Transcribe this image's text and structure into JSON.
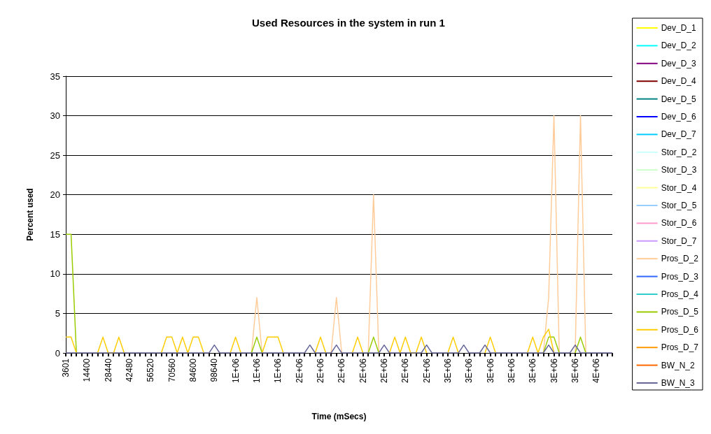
{
  "chart_data": {
    "type": "line",
    "title": "Used Resources in the system in run 1",
    "xlabel": "Time (mSecs)",
    "ylabel": "Percent used",
    "categories": [
      "3601",
      null,
      null,
      null,
      "14400",
      null,
      null,
      null,
      "28440",
      null,
      null,
      null,
      "42480",
      null,
      null,
      null,
      "56520",
      null,
      null,
      null,
      "70560",
      null,
      null,
      null,
      "84600",
      null,
      null,
      null,
      "98640",
      null,
      null,
      null,
      "1E+06",
      null,
      null,
      null,
      "1E+06",
      null,
      null,
      null,
      "1E+06",
      null,
      null,
      null,
      "2E+06",
      null,
      null,
      null,
      "2E+06",
      null,
      null,
      null,
      "2E+06",
      null,
      null,
      null,
      "2E+06",
      null,
      null,
      null,
      "2E+06",
      null,
      null,
      null,
      "2E+06",
      null,
      null,
      null,
      "2E+06",
      null,
      null,
      null,
      "3E+06",
      null,
      null,
      null,
      "3E+06",
      null,
      null,
      null,
      "3E+06",
      null,
      null,
      null,
      "3E+06",
      null,
      null,
      null,
      "3E+06",
      null,
      null,
      null,
      "3E+06",
      null,
      null,
      null,
      "3E+06",
      null,
      null,
      null,
      "4E+06",
      null,
      null,
      null
    ],
    "ylim": [
      0,
      35
    ],
    "yticks": [
      0,
      5,
      10,
      15,
      20,
      25,
      30,
      35
    ],
    "grid": "y",
    "legend": "right",
    "marker": "none",
    "series": [
      {
        "name": "Dev_D_1",
        "color": "#ffff00",
        "values": [
          null,
          null,
          null,
          null,
          null,
          null,
          null,
          null,
          null,
          null,
          null,
          null,
          null,
          null,
          null,
          null,
          null,
          null,
          null,
          null,
          null,
          null,
          null,
          null,
          null,
          null,
          null,
          null,
          null,
          null,
          null,
          null,
          null,
          null,
          null,
          null,
          null,
          null,
          null,
          null,
          null,
          null,
          null,
          null,
          null,
          null,
          null,
          null,
          null,
          null,
          null,
          null,
          null,
          null,
          null,
          null,
          null,
          null,
          null,
          null,
          null,
          null,
          null,
          null,
          null,
          null,
          null,
          null,
          null,
          null,
          null,
          null,
          null,
          null,
          null,
          null,
          null,
          null,
          null,
          null,
          null,
          null,
          null,
          null,
          null,
          null,
          null,
          null,
          null,
          null,
          null,
          null,
          null,
          null,
          null,
          null,
          null,
          null,
          null,
          null,
          null,
          null,
          null,
          null
        ]
      },
      {
        "name": "Dev_D_2",
        "color": "#00ffff",
        "values": [
          null,
          null,
          null,
          null,
          null,
          null,
          null,
          null,
          null,
          null,
          null,
          null,
          null,
          null,
          null,
          null,
          null,
          null,
          null,
          null,
          null,
          null,
          null,
          null,
          null,
          null,
          null,
          null,
          null,
          null,
          null,
          null,
          null,
          null,
          null,
          null,
          null,
          null,
          null,
          null,
          null,
          null,
          null,
          null,
          null,
          null,
          null,
          null,
          null,
          null,
          null,
          null,
          null,
          null,
          null,
          null,
          null,
          null,
          null,
          null,
          null,
          null,
          null,
          null,
          null,
          null,
          null,
          null,
          null,
          null,
          null,
          null,
          null,
          null,
          null,
          null,
          null,
          null,
          null,
          null,
          null,
          null,
          null,
          null,
          null,
          null,
          null,
          null,
          null,
          null,
          null,
          null,
          null,
          null,
          null,
          null,
          null,
          null,
          null,
          null,
          null,
          null,
          null,
          null
        ]
      },
      {
        "name": "Dev_D_3",
        "color": "#800080",
        "values": [
          null,
          null,
          null,
          null,
          null,
          null,
          null,
          null,
          null,
          null,
          null,
          null,
          null,
          null,
          null,
          null,
          null,
          null,
          null,
          null,
          null,
          null,
          null,
          null,
          null,
          null,
          null,
          null,
          null,
          null,
          null,
          null,
          null,
          null,
          null,
          null,
          null,
          null,
          null,
          null,
          null,
          null,
          null,
          null,
          null,
          null,
          null,
          null,
          null,
          null,
          null,
          null,
          null,
          null,
          null,
          null,
          null,
          null,
          null,
          null,
          null,
          null,
          null,
          null,
          null,
          null,
          null,
          null,
          null,
          null,
          null,
          null,
          null,
          null,
          null,
          null,
          null,
          null,
          null,
          null,
          null,
          null,
          null,
          null,
          null,
          null,
          null,
          null,
          null,
          null,
          null,
          null,
          null,
          null,
          null,
          null,
          null,
          null,
          null,
          null,
          null,
          null,
          null,
          null
        ]
      },
      {
        "name": "Dev_D_4",
        "color": "#800000",
        "values": [
          null,
          null,
          null,
          null,
          null,
          null,
          null,
          null,
          null,
          null,
          null,
          null,
          null,
          null,
          null,
          null,
          null,
          null,
          null,
          null,
          null,
          null,
          null,
          null,
          null,
          null,
          null,
          null,
          null,
          null,
          null,
          null,
          null,
          null,
          null,
          null,
          null,
          null,
          null,
          null,
          null,
          null,
          null,
          null,
          null,
          null,
          null,
          null,
          null,
          null,
          null,
          null,
          null,
          null,
          null,
          null,
          null,
          null,
          null,
          null,
          null,
          null,
          null,
          null,
          null,
          null,
          null,
          null,
          null,
          null,
          null,
          null,
          null,
          null,
          null,
          null,
          null,
          null,
          null,
          null,
          null,
          null,
          null,
          null,
          null,
          null,
          null,
          null,
          null,
          null,
          null,
          null,
          null,
          null,
          null,
          null,
          null,
          null,
          null,
          null,
          null,
          null,
          null,
          null
        ]
      },
      {
        "name": "Dev_D_5",
        "color": "#008080",
        "values": [
          null,
          null,
          null,
          null,
          null,
          null,
          null,
          null,
          null,
          null,
          null,
          null,
          null,
          null,
          null,
          null,
          null,
          null,
          null,
          null,
          null,
          null,
          null,
          null,
          null,
          null,
          null,
          null,
          null,
          null,
          null,
          null,
          null,
          null,
          null,
          null,
          null,
          null,
          null,
          null,
          null,
          null,
          null,
          null,
          null,
          null,
          null,
          null,
          null,
          null,
          null,
          null,
          null,
          null,
          null,
          null,
          null,
          null,
          null,
          null,
          null,
          null,
          null,
          null,
          null,
          null,
          null,
          null,
          null,
          null,
          null,
          null,
          null,
          null,
          null,
          null,
          null,
          null,
          null,
          null,
          null,
          null,
          null,
          null,
          null,
          null,
          null,
          null,
          null,
          null,
          null,
          null,
          null,
          null,
          null,
          null,
          null,
          null,
          null,
          null,
          null,
          null,
          null,
          null
        ]
      },
      {
        "name": "Dev_D_6",
        "color": "#0000ff",
        "values": [
          null,
          null,
          null,
          null,
          null,
          null,
          null,
          null,
          null,
          null,
          null,
          null,
          null,
          null,
          null,
          null,
          null,
          null,
          null,
          null,
          null,
          null,
          null,
          null,
          null,
          null,
          null,
          null,
          null,
          null,
          null,
          null,
          null,
          null,
          null,
          null,
          null,
          null,
          null,
          null,
          null,
          null,
          null,
          null,
          null,
          null,
          null,
          null,
          null,
          null,
          null,
          null,
          null,
          null,
          null,
          null,
          null,
          null,
          null,
          null,
          null,
          null,
          null,
          null,
          null,
          null,
          null,
          null,
          null,
          null,
          null,
          null,
          null,
          null,
          null,
          null,
          null,
          null,
          null,
          null,
          null,
          null,
          null,
          null,
          null,
          null,
          null,
          null,
          null,
          null,
          null,
          null,
          null,
          null,
          null,
          null,
          null,
          null,
          null,
          null,
          null,
          null,
          null,
          null
        ]
      },
      {
        "name": "Dev_D_7",
        "color": "#00ccff",
        "values": [
          null,
          null,
          null,
          null,
          null,
          null,
          null,
          null,
          null,
          null,
          null,
          null,
          null,
          null,
          null,
          null,
          null,
          null,
          null,
          null,
          null,
          null,
          null,
          null,
          null,
          null,
          null,
          null,
          null,
          null,
          null,
          null,
          null,
          null,
          null,
          null,
          null,
          null,
          null,
          null,
          null,
          null,
          null,
          null,
          null,
          null,
          null,
          null,
          null,
          null,
          null,
          null,
          null,
          null,
          null,
          null,
          null,
          null,
          null,
          null,
          null,
          null,
          null,
          null,
          null,
          null,
          null,
          null,
          null,
          null,
          null,
          null,
          null,
          null,
          null,
          null,
          null,
          null,
          null,
          null,
          null,
          null,
          null,
          null,
          null,
          null,
          null,
          null,
          null,
          null,
          null,
          null,
          null,
          null,
          null,
          null,
          null,
          null,
          null,
          null,
          null,
          null,
          null,
          null
        ]
      },
      {
        "name": "Stor_D_2",
        "color": "#ccffff",
        "values": [
          null,
          null,
          null,
          null,
          null,
          null,
          null,
          null,
          null,
          null,
          null,
          null,
          null,
          null,
          null,
          null,
          null,
          null,
          null,
          null,
          null,
          null,
          null,
          null,
          null,
          null,
          null,
          null,
          null,
          null,
          null,
          null,
          null,
          null,
          null,
          null,
          null,
          null,
          null,
          null,
          null,
          null,
          null,
          null,
          null,
          null,
          null,
          null,
          null,
          null,
          null,
          null,
          null,
          null,
          null,
          null,
          null,
          null,
          null,
          null,
          null,
          null,
          null,
          null,
          null,
          null,
          null,
          null,
          null,
          null,
          null,
          null,
          null,
          null,
          null,
          null,
          null,
          null,
          null,
          null,
          null,
          null,
          null,
          null,
          null,
          null,
          null,
          null,
          null,
          null,
          null,
          null,
          null,
          null,
          null,
          null,
          null,
          null,
          null,
          null,
          null,
          null,
          null,
          null
        ]
      },
      {
        "name": "Stor_D_3",
        "color": "#ccffcc",
        "values": [
          null,
          null,
          null,
          null,
          null,
          null,
          null,
          null,
          null,
          null,
          null,
          null,
          null,
          null,
          null,
          null,
          null,
          null,
          null,
          null,
          null,
          null,
          null,
          null,
          null,
          null,
          null,
          null,
          null,
          null,
          null,
          null,
          null,
          null,
          null,
          null,
          null,
          null,
          null,
          null,
          null,
          null,
          null,
          null,
          null,
          null,
          null,
          null,
          null,
          null,
          null,
          null,
          null,
          null,
          null,
          null,
          null,
          null,
          null,
          null,
          null,
          null,
          null,
          null,
          null,
          null,
          null,
          null,
          null,
          null,
          null,
          null,
          null,
          null,
          null,
          null,
          null,
          null,
          null,
          null,
          null,
          null,
          null,
          null,
          null,
          null,
          null,
          null,
          null,
          null,
          null,
          null,
          null,
          null,
          null,
          null,
          null,
          null,
          null,
          null,
          null,
          null,
          null,
          null
        ]
      },
      {
        "name": "Stor_D_4",
        "color": "#ffff99",
        "values": [
          null,
          null,
          null,
          null,
          null,
          null,
          null,
          null,
          null,
          null,
          null,
          null,
          null,
          null,
          null,
          null,
          null,
          null,
          null,
          null,
          null,
          null,
          null,
          null,
          null,
          null,
          null,
          null,
          null,
          null,
          null,
          null,
          null,
          null,
          null,
          null,
          null,
          null,
          null,
          null,
          null,
          null,
          null,
          null,
          null,
          null,
          null,
          null,
          null,
          null,
          null,
          null,
          null,
          null,
          null,
          null,
          null,
          null,
          null,
          null,
          null,
          null,
          null,
          null,
          null,
          null,
          null,
          null,
          null,
          null,
          null,
          null,
          null,
          null,
          null,
          null,
          null,
          null,
          null,
          null,
          null,
          null,
          null,
          null,
          null,
          null,
          null,
          null,
          null,
          null,
          null,
          null,
          null,
          null,
          null,
          null,
          null,
          null,
          null,
          null,
          null,
          null,
          null,
          null
        ]
      },
      {
        "name": "Stor_D_5",
        "color": "#99ccff",
        "values": [
          null,
          null,
          null,
          null,
          null,
          null,
          null,
          null,
          null,
          null,
          null,
          null,
          null,
          null,
          null,
          null,
          null,
          null,
          null,
          null,
          null,
          null,
          null,
          null,
          null,
          null,
          null,
          null,
          null,
          null,
          null,
          null,
          null,
          null,
          null,
          null,
          null,
          null,
          null,
          null,
          null,
          null,
          null,
          null,
          null,
          null,
          null,
          null,
          null,
          null,
          null,
          null,
          null,
          null,
          null,
          null,
          null,
          null,
          null,
          null,
          null,
          null,
          null,
          null,
          null,
          null,
          null,
          null,
          null,
          null,
          null,
          null,
          null,
          null,
          null,
          null,
          null,
          null,
          null,
          null,
          null,
          null,
          null,
          null,
          null,
          null,
          null,
          null,
          null,
          null,
          null,
          null,
          null,
          null,
          null,
          null,
          null,
          null,
          null,
          null,
          null,
          null,
          null,
          null
        ]
      },
      {
        "name": "Stor_D_6",
        "color": "#ff99cc",
        "values": [
          null,
          null,
          null,
          null,
          null,
          null,
          null,
          null,
          null,
          null,
          null,
          null,
          null,
          null,
          null,
          null,
          null,
          null,
          null,
          null,
          null,
          null,
          null,
          null,
          null,
          null,
          null,
          null,
          null,
          null,
          null,
          null,
          null,
          null,
          null,
          null,
          null,
          null,
          null,
          null,
          null,
          null,
          null,
          null,
          null,
          null,
          null,
          null,
          null,
          null,
          null,
          null,
          null,
          null,
          null,
          null,
          null,
          null,
          null,
          null,
          null,
          null,
          null,
          null,
          null,
          null,
          null,
          null,
          null,
          null,
          null,
          null,
          null,
          null,
          null,
          null,
          null,
          null,
          null,
          null,
          null,
          null,
          null,
          null,
          null,
          null,
          null,
          null,
          null,
          null,
          null,
          null,
          null,
          null,
          null,
          null,
          null,
          null,
          null,
          null,
          null,
          null,
          null,
          null
        ]
      },
      {
        "name": "Stor_D_7",
        "color": "#cc99ff",
        "values": [
          null,
          null,
          null,
          null,
          null,
          null,
          null,
          null,
          null,
          null,
          null,
          null,
          null,
          null,
          null,
          null,
          null,
          null,
          null,
          null,
          null,
          null,
          null,
          null,
          null,
          null,
          null,
          null,
          null,
          null,
          null,
          null,
          null,
          null,
          null,
          null,
          null,
          null,
          null,
          null,
          null,
          null,
          null,
          null,
          null,
          null,
          null,
          null,
          null,
          null,
          null,
          null,
          null,
          null,
          null,
          null,
          null,
          null,
          null,
          null,
          null,
          null,
          null,
          null,
          null,
          null,
          null,
          null,
          null,
          null,
          null,
          null,
          null,
          null,
          null,
          null,
          null,
          null,
          null,
          null,
          null,
          null,
          null,
          null,
          null,
          null,
          null,
          null,
          null,
          null,
          null,
          null,
          null,
          null,
          null,
          null,
          null,
          null,
          null,
          null,
          null,
          null,
          null,
          null
        ]
      },
      {
        "name": "Pros_D_2",
        "color": "#ffcc99",
        "values": [
          null,
          null,
          null,
          null,
          null,
          null,
          null,
          null,
          null,
          null,
          null,
          null,
          null,
          null,
          null,
          null,
          null,
          null,
          null,
          null,
          null,
          null,
          null,
          null,
          null,
          null,
          null,
          null,
          null,
          null,
          null,
          null,
          null,
          null,
          null,
          0,
          7,
          0,
          null,
          null,
          null,
          null,
          null,
          null,
          null,
          null,
          null,
          null,
          null,
          null,
          0,
          7,
          0,
          null,
          null,
          null,
          null,
          0,
          20,
          0,
          null,
          null,
          null,
          null,
          null,
          null,
          null,
          null,
          null,
          null,
          null,
          null,
          null,
          null,
          null,
          null,
          null,
          null,
          null,
          null,
          null,
          null,
          null,
          null,
          null,
          null,
          null,
          null,
          null,
          null,
          0,
          7,
          30,
          0,
          null,
          null,
          0,
          30,
          0,
          null,
          null,
          null,
          null,
          null
        ]
      },
      {
        "name": "Pros_D_3",
        "color": "#3366ff",
        "values": [
          null,
          null,
          null,
          null,
          null,
          null,
          null,
          null,
          null,
          null,
          null,
          null,
          null,
          null,
          null,
          null,
          null,
          null,
          null,
          null,
          null,
          null,
          null,
          null,
          null,
          null,
          null,
          null,
          null,
          null,
          null,
          null,
          null,
          null,
          null,
          null,
          null,
          null,
          null,
          null,
          null,
          null,
          null,
          null,
          null,
          null,
          null,
          null,
          null,
          null,
          null,
          null,
          null,
          null,
          null,
          null,
          null,
          null,
          null,
          null,
          null,
          null,
          null,
          null,
          null,
          null,
          null,
          null,
          null,
          null,
          null,
          null,
          null,
          null,
          null,
          null,
          null,
          null,
          null,
          null,
          null,
          null,
          null,
          null,
          null,
          null,
          null,
          null,
          null,
          null,
          null,
          null,
          null,
          null,
          null,
          null,
          null,
          null,
          null,
          null,
          null,
          null,
          null,
          null
        ]
      },
      {
        "name": "Pros_D_4",
        "color": "#33cccc",
        "values": [
          null,
          null,
          null,
          null,
          null,
          null,
          null,
          null,
          null,
          null,
          null,
          null,
          null,
          null,
          null,
          null,
          null,
          null,
          null,
          null,
          null,
          null,
          null,
          null,
          null,
          null,
          null,
          null,
          null,
          null,
          null,
          null,
          null,
          null,
          null,
          null,
          null,
          null,
          null,
          null,
          null,
          null,
          null,
          null,
          null,
          null,
          null,
          null,
          null,
          null,
          null,
          null,
          null,
          null,
          null,
          null,
          null,
          null,
          null,
          null,
          null,
          null,
          null,
          null,
          null,
          null,
          null,
          null,
          null,
          null,
          null,
          null,
          null,
          null,
          null,
          null,
          null,
          null,
          null,
          null,
          null,
          null,
          null,
          null,
          null,
          null,
          null,
          null,
          null,
          null,
          null,
          null,
          null,
          null,
          null,
          null,
          null,
          null,
          null,
          null,
          null,
          null,
          null,
          null
        ]
      },
      {
        "name": "Pros_D_5",
        "color": "#99cc00",
        "values": [
          15,
          15,
          0,
          null,
          null,
          null,
          null,
          null,
          null,
          null,
          null,
          null,
          null,
          null,
          null,
          null,
          null,
          null,
          null,
          null,
          null,
          null,
          null,
          null,
          null,
          null,
          null,
          null,
          null,
          null,
          null,
          null,
          null,
          null,
          null,
          0,
          2,
          0,
          null,
          null,
          null,
          null,
          null,
          null,
          null,
          null,
          null,
          null,
          null,
          null,
          null,
          null,
          null,
          null,
          null,
          null,
          null,
          0,
          2,
          0,
          null,
          null,
          null,
          null,
          null,
          null,
          null,
          null,
          null,
          null,
          null,
          null,
          null,
          null,
          null,
          null,
          null,
          null,
          null,
          null,
          null,
          null,
          null,
          null,
          null,
          null,
          null,
          null,
          null,
          null,
          0,
          2,
          2,
          0,
          null,
          null,
          0,
          2,
          0,
          null,
          null,
          null,
          null,
          null
        ]
      },
      {
        "name": "Pros_D_6",
        "color": "#ffcc00",
        "values": [
          2,
          2,
          0,
          null,
          null,
          null,
          0,
          2,
          0,
          0,
          2,
          0,
          null,
          null,
          null,
          null,
          null,
          null,
          0,
          2,
          2,
          0,
          2,
          0,
          2,
          2,
          0,
          null,
          null,
          null,
          null,
          0,
          2,
          0,
          null,
          null,
          null,
          0,
          2,
          2,
          2,
          0,
          null,
          null,
          null,
          null,
          null,
          0,
          2,
          0,
          null,
          null,
          null,
          null,
          0,
          2,
          0,
          null,
          null,
          null,
          null,
          0,
          2,
          0,
          2,
          0,
          0,
          2,
          0,
          null,
          null,
          null,
          0,
          2,
          0,
          null,
          null,
          null,
          null,
          0,
          2,
          0,
          null,
          null,
          null,
          null,
          null,
          0,
          2,
          0,
          2,
          3,
          0,
          null,
          null,
          null,
          null,
          null,
          null,
          null,
          null,
          null,
          null,
          null
        ]
      },
      {
        "name": "Pros_D_7",
        "color": "#ff9900",
        "values": [
          null,
          null,
          null,
          null,
          null,
          null,
          null,
          null,
          null,
          null,
          null,
          null,
          null,
          null,
          null,
          null,
          null,
          null,
          null,
          null,
          null,
          null,
          null,
          null,
          null,
          null,
          null,
          null,
          null,
          null,
          null,
          null,
          null,
          null,
          null,
          null,
          null,
          null,
          null,
          null,
          null,
          null,
          null,
          null,
          null,
          null,
          null,
          null,
          null,
          null,
          null,
          null,
          null,
          null,
          null,
          null,
          null,
          null,
          null,
          null,
          null,
          null,
          null,
          null,
          null,
          null,
          null,
          null,
          null,
          null,
          null,
          null,
          null,
          null,
          null,
          null,
          null,
          null,
          null,
          null,
          null,
          null,
          null,
          null,
          null,
          null,
          null,
          null,
          null,
          null,
          null,
          null,
          null,
          null,
          null,
          null,
          null,
          null,
          null,
          null,
          null,
          null,
          null,
          null
        ]
      },
      {
        "name": "BW_N_2",
        "color": "#ff6600",
        "values": [
          null,
          null,
          null,
          null,
          null,
          null,
          null,
          null,
          null,
          null,
          null,
          null,
          null,
          null,
          null,
          null,
          null,
          null,
          null,
          null,
          null,
          null,
          null,
          null,
          null,
          null,
          null,
          null,
          null,
          null,
          null,
          null,
          null,
          null,
          null,
          null,
          null,
          null,
          null,
          null,
          null,
          null,
          null,
          null,
          null,
          null,
          null,
          null,
          null,
          null,
          null,
          null,
          null,
          null,
          null,
          null,
          null,
          null,
          null,
          null,
          null,
          null,
          null,
          null,
          null,
          null,
          null,
          null,
          null,
          null,
          null,
          null,
          null,
          null,
          null,
          null,
          null,
          null,
          null,
          null,
          null,
          null,
          null,
          null,
          null,
          null,
          null,
          null,
          null,
          null,
          null,
          null,
          null,
          null,
          null,
          null,
          null,
          null,
          null,
          null,
          null,
          null,
          null,
          null
        ]
      },
      {
        "name": "BW_N_3",
        "color": "#666699",
        "values": [
          0,
          0,
          0,
          0,
          0,
          0,
          0,
          0,
          0,
          0,
          0,
          0,
          0,
          0,
          0,
          0,
          0,
          0,
          0,
          0,
          0,
          0,
          0,
          0,
          0,
          0,
          0,
          0,
          1,
          0,
          0,
          0,
          0,
          0,
          0,
          0,
          0,
          0,
          0,
          0,
          0,
          0,
          0,
          0,
          0,
          0,
          1,
          0,
          0,
          0,
          0,
          1,
          0,
          0,
          0,
          0,
          0,
          0,
          0,
          0,
          1,
          0,
          0,
          0,
          0,
          0,
          0,
          0,
          1,
          0,
          0,
          0,
          0,
          0,
          0,
          1,
          0,
          0,
          0,
          1,
          0,
          0,
          0,
          0,
          0,
          0,
          0,
          0,
          0,
          0,
          0,
          1,
          0,
          0,
          0,
          0,
          1,
          0,
          0,
          0,
          0,
          0,
          0,
          0
        ]
      }
    ]
  }
}
